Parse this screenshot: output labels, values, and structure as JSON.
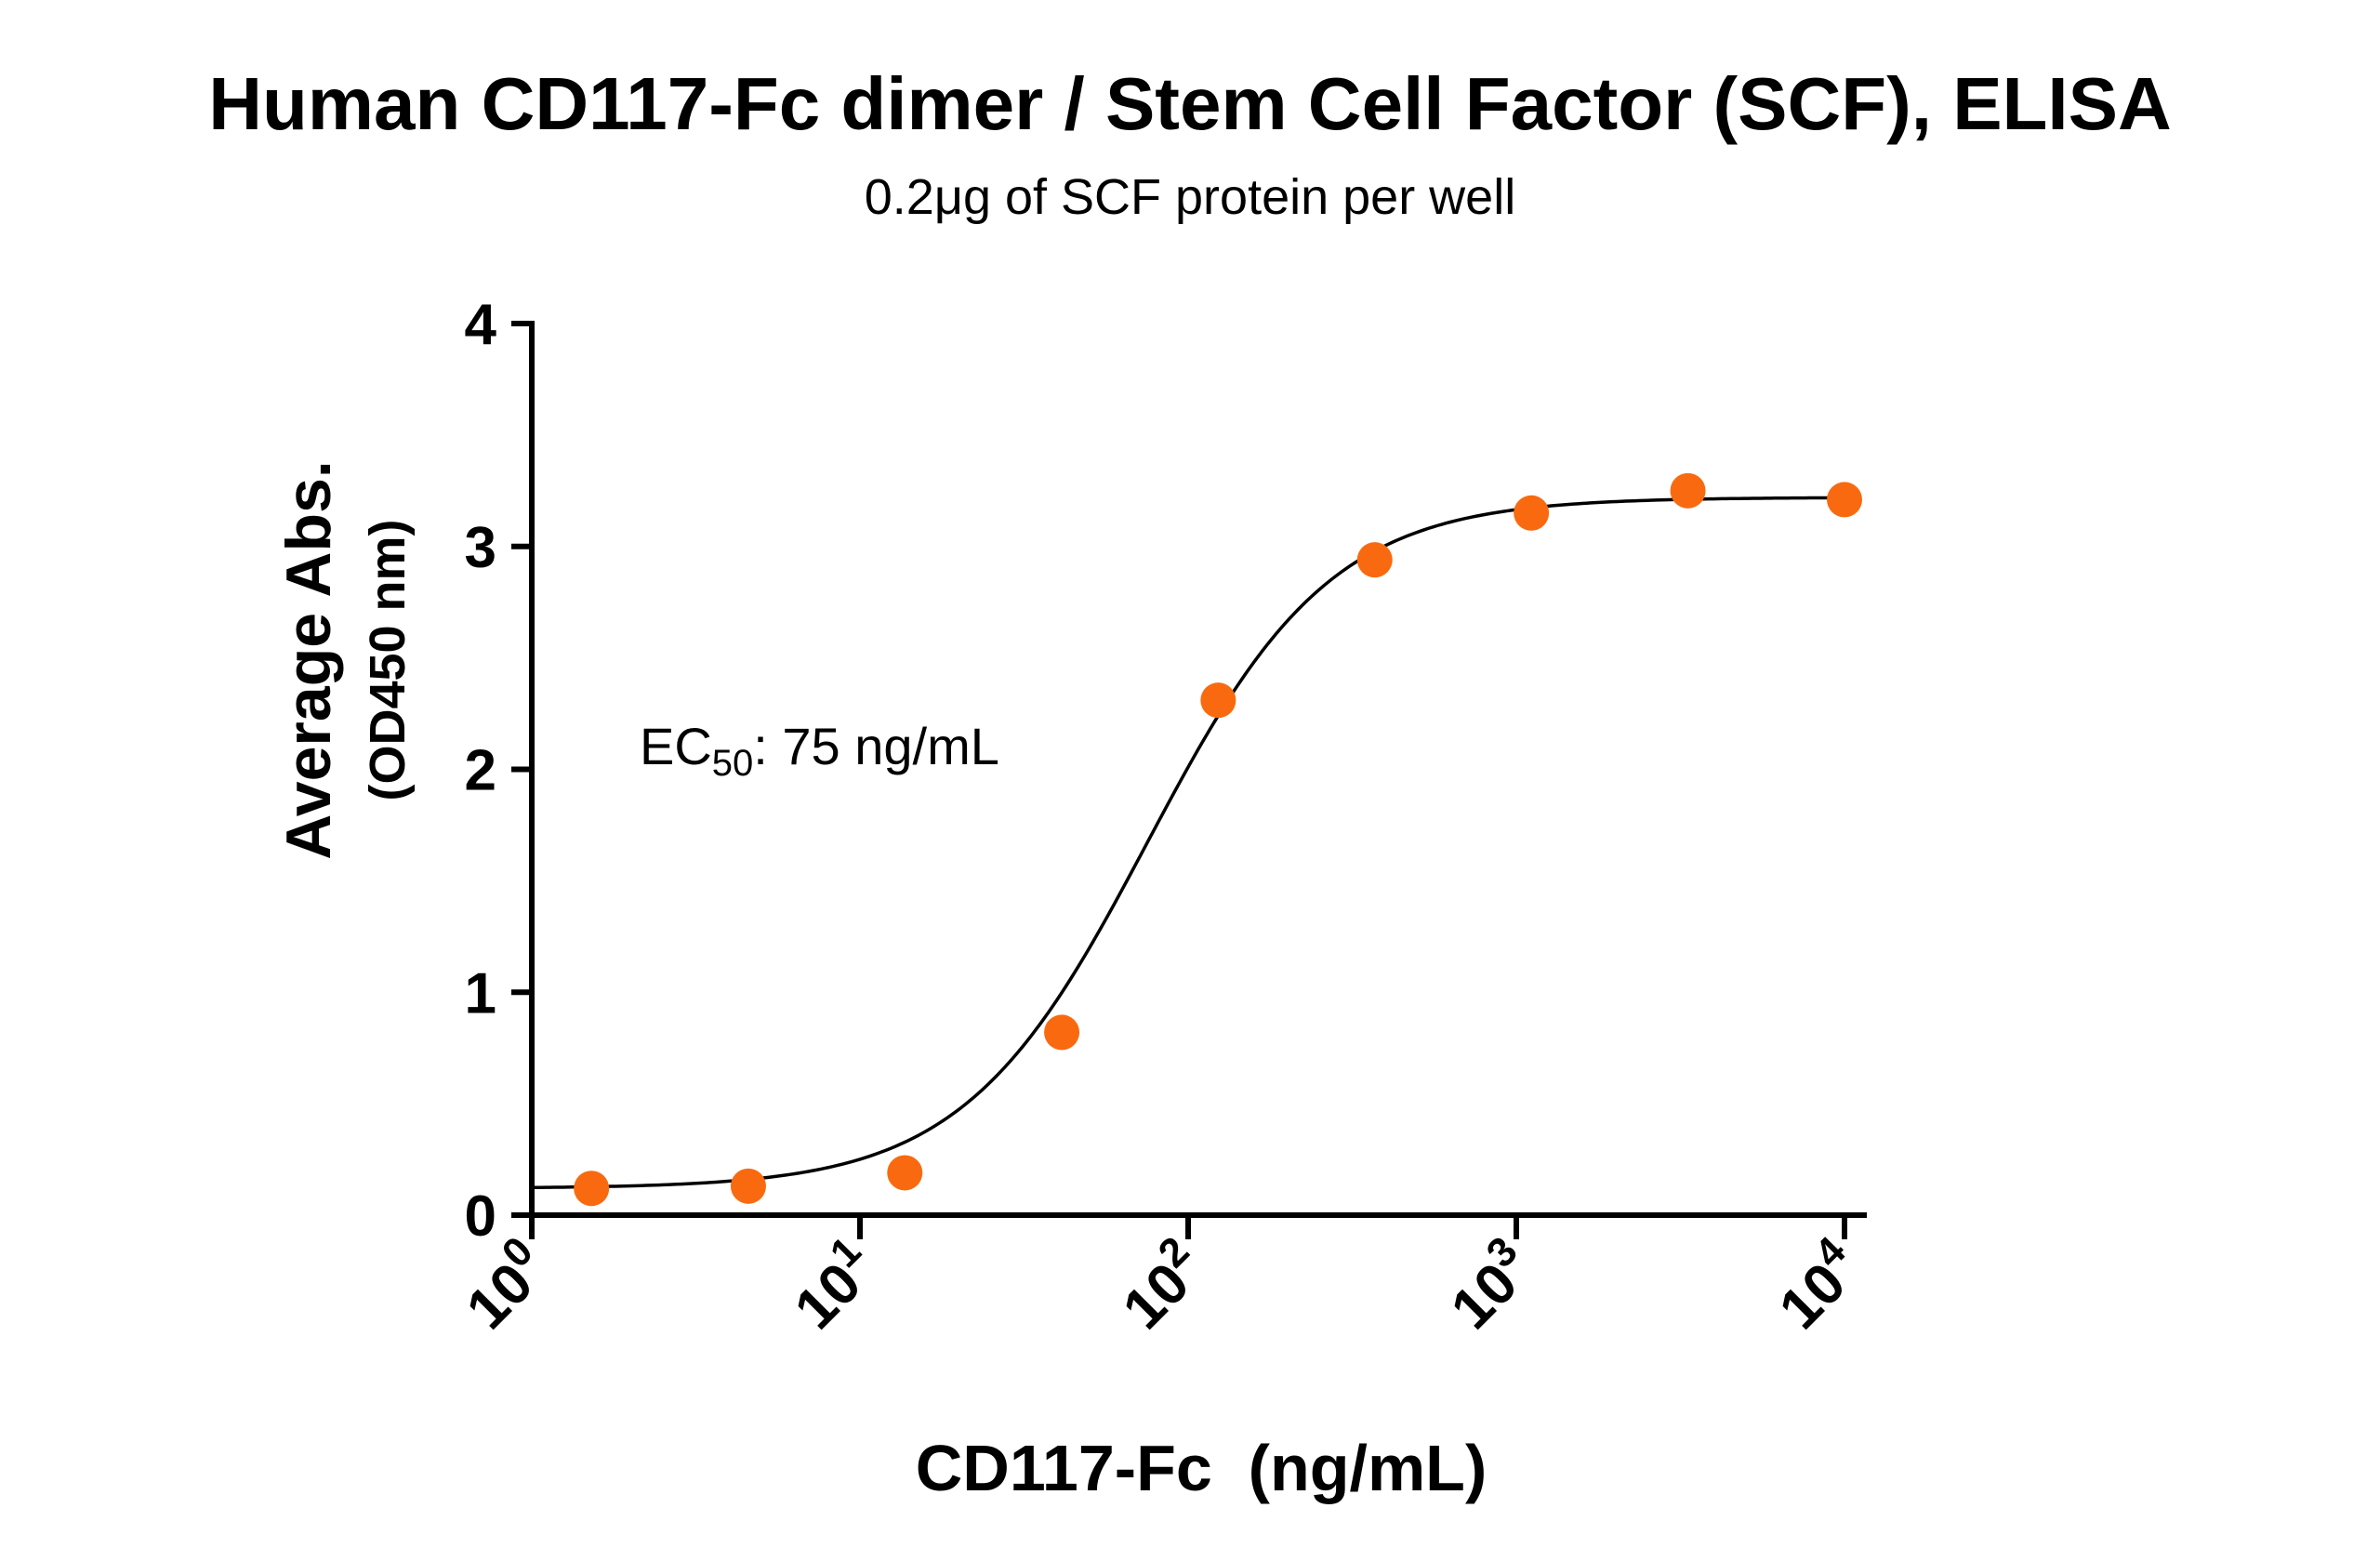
{
  "chart_data": {
    "type": "scatter",
    "title": "Human CD117-Fc dimer / Stem Cell Factor (SCF), ELISA",
    "subtitle": "0.2μg of SCF protein per well",
    "xlabel": "CD117-Fc  (ng/mL)",
    "ylabel": "Average Abs.",
    "ylabel_sub": "(OD450 nm)",
    "x_scale": "log10",
    "xlim": [
      1,
      10000
    ],
    "ylim": [
      0,
      4
    ],
    "grid": false,
    "legend": "none",
    "x_ticks": [
      {
        "base": "10",
        "exp": "0",
        "value": 1
      },
      {
        "base": "10",
        "exp": "1",
        "value": 10
      },
      {
        "base": "10",
        "exp": "2",
        "value": 100
      },
      {
        "base": "10",
        "exp": "3",
        "value": 1000
      },
      {
        "base": "10",
        "exp": "4",
        "value": 10000
      }
    ],
    "y_ticks": [
      "0",
      "1",
      "2",
      "3",
      "4"
    ],
    "annotation": {
      "prefix": "EC",
      "subscript": "50",
      "suffix": ": 75 ng/mL"
    },
    "series": [
      {
        "x": [
          1.52,
          4.57,
          13.7,
          41.2,
          123.5,
          370.4,
          1111,
          3333,
          10000
        ],
        "y": [
          0.12,
          0.13,
          0.19,
          0.82,
          2.31,
          2.94,
          3.15,
          3.25,
          3.21
        ],
        "marker_color": "#f96a10"
      }
    ],
    "fit_curve": {
      "model": "4PL",
      "bottom": 0.12,
      "top": 3.22,
      "ec50": 75,
      "hill": 1.55,
      "color": "#000000"
    }
  }
}
